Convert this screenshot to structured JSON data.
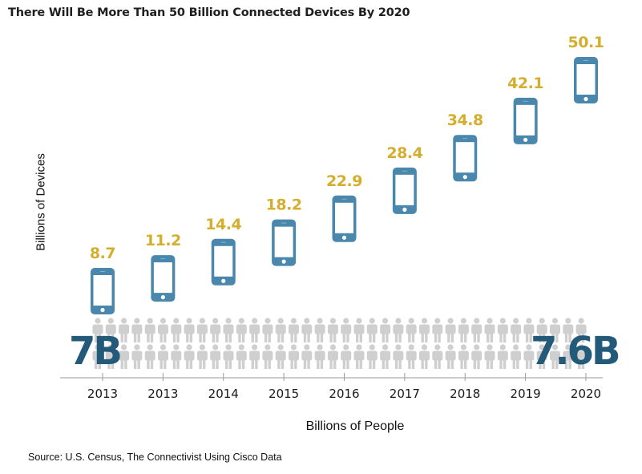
{
  "chart_data": {
    "type": "scatter",
    "title": "There Will Be More Than 50 Billion Connected Devices By 2020",
    "ylabel": "Billions of Devices",
    "xlabel": "Billions of People",
    "categories": [
      "2013",
      "2013",
      "2014",
      "2015",
      "2016",
      "2017",
      "2018",
      "2019",
      "2020"
    ],
    "series": [
      {
        "name": "Billions of Devices",
        "marker": "smartphone-icon",
        "values": [
          8.7,
          11.2,
          14.4,
          18.2,
          22.9,
          28.4,
          34.8,
          42.1,
          50.1
        ],
        "labels": [
          "8.7",
          "11.2",
          "14.4",
          "18.2",
          "22.9",
          "28.4",
          "34.8",
          "42.1",
          "50.1"
        ]
      }
    ],
    "people": {
      "start_label": "7B",
      "end_label": "7.6B",
      "start_value": 7.0,
      "end_value": 7.6,
      "marker": "person-icon"
    },
    "ylim": [
      8.7,
      50.1
    ],
    "grid": false,
    "legend": "none",
    "source": "Source: U.S. Census, The Connectivist Using Cisco Data"
  },
  "colors": {
    "phone": "#4a87ad",
    "value_label": "#d4ae2c",
    "people": "#cfcfcf",
    "big_label": "#235a7a",
    "axis": "#9a9a9a"
  }
}
